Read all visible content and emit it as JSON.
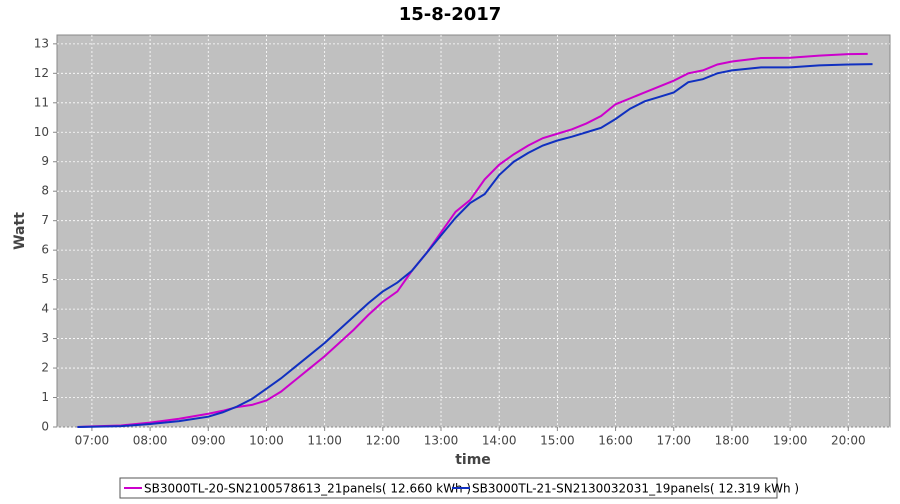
{
  "chart_data": {
    "type": "line",
    "title": "15-8-2017",
    "x_label": "time",
    "y_label": "Watt",
    "xlim": [
      "06:24",
      "20:43"
    ],
    "xticks": [
      "07:00",
      "08:00",
      "09:00",
      "10:00",
      "11:00",
      "12:00",
      "13:00",
      "14:00",
      "15:00",
      "16:00",
      "17:00",
      "18:00",
      "19:00",
      "20:00"
    ],
    "ylim": [
      0,
      13.3
    ],
    "yticks": [
      0,
      1,
      2,
      3,
      4,
      5,
      6,
      7,
      8,
      9,
      10,
      11,
      12,
      13
    ],
    "grid": true,
    "series": [
      {
        "name": "SB3000TL-20-SN2100578613_21panels( 12.660 kWh )",
        "color": "#cc00cc",
        "x": [
          "06:45",
          "07:00",
          "07:30",
          "08:00",
          "08:30",
          "09:00",
          "09:15",
          "09:30",
          "09:45",
          "10:00",
          "10:15",
          "10:30",
          "10:45",
          "11:00",
          "11:15",
          "11:30",
          "11:45",
          "12:00",
          "12:15",
          "12:30",
          "12:45",
          "13:00",
          "13:15",
          "13:30",
          "13:45",
          "14:00",
          "14:15",
          "14:30",
          "14:45",
          "15:00",
          "15:15",
          "15:30",
          "15:45",
          "16:00",
          "16:15",
          "16:30",
          "16:45",
          "17:00",
          "17:15",
          "17:30",
          "17:45",
          "18:00",
          "18:30",
          "19:00",
          "19:30",
          "20:00",
          "20:20"
        ],
        "values": [
          0,
          0.02,
          0.05,
          0.15,
          0.28,
          0.45,
          0.55,
          0.68,
          0.75,
          0.9,
          1.2,
          1.6,
          2.0,
          2.4,
          2.85,
          3.3,
          3.8,
          4.25,
          4.6,
          5.3,
          5.9,
          6.6,
          7.3,
          7.7,
          8.4,
          8.9,
          9.25,
          9.55,
          9.8,
          9.95,
          10.1,
          10.3,
          10.55,
          10.95,
          11.15,
          11.35,
          11.55,
          11.75,
          12.0,
          12.1,
          12.3,
          12.4,
          12.52,
          12.53,
          12.6,
          12.65,
          12.66
        ]
      },
      {
        "name": "SB3000TL-21-SN2130032031_19panels( 12.319 kWh )",
        "color": "#1030c0",
        "x": [
          "06:45",
          "07:00",
          "07:30",
          "08:00",
          "08:30",
          "09:00",
          "09:15",
          "09:30",
          "09:45",
          "10:00",
          "10:15",
          "10:30",
          "10:45",
          "11:00",
          "11:15",
          "11:30",
          "11:45",
          "12:00",
          "12:15",
          "12:30",
          "12:45",
          "13:00",
          "13:15",
          "13:30",
          "13:45",
          "14:00",
          "14:15",
          "14:30",
          "14:45",
          "15:00",
          "15:15",
          "15:30",
          "15:45",
          "16:00",
          "16:15",
          "16:30",
          "16:45",
          "17:00",
          "17:15",
          "17:30",
          "17:45",
          "18:00",
          "18:30",
          "19:00",
          "19:30",
          "20:00",
          "20:25"
        ],
        "values": [
          0,
          0.01,
          0.03,
          0.1,
          0.2,
          0.35,
          0.5,
          0.7,
          0.95,
          1.3,
          1.65,
          2.05,
          2.45,
          2.85,
          3.3,
          3.75,
          4.2,
          4.6,
          4.9,
          5.3,
          5.9,
          6.5,
          7.1,
          7.6,
          7.9,
          8.55,
          9.0,
          9.3,
          9.55,
          9.72,
          9.85,
          10.0,
          10.15,
          10.45,
          10.8,
          11.05,
          11.2,
          11.35,
          11.7,
          11.8,
          12.0,
          12.1,
          12.2,
          12.2,
          12.27,
          12.3,
          12.31
        ]
      }
    ]
  }
}
